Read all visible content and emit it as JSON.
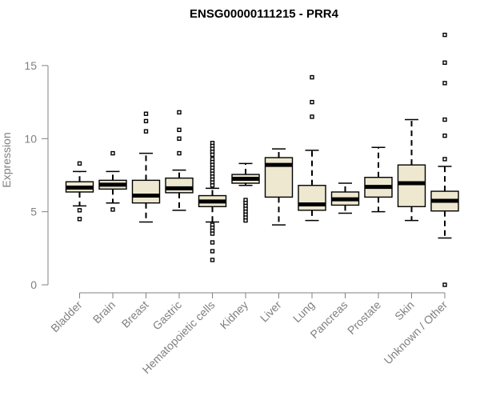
{
  "chart_data": {
    "type": "boxplot",
    "title": "ENSG00000111215 - PRR4",
    "ylabel": "Expression",
    "xlabel": "",
    "ylim": [
      0,
      17.5
    ],
    "yticks": [
      0,
      5,
      10,
      15
    ],
    "box_fill": "#EEE8D0",
    "categories": [
      "Bladder",
      "Brain",
      "Breast",
      "Gastric",
      "Hematopoietic cells",
      "Kidney",
      "Liver",
      "Lung",
      "Pancreas",
      "Prostate",
      "Skin",
      "Unknown / Other"
    ],
    "series": [
      {
        "whisker_low": 5.4,
        "q1": 6.35,
        "median": 6.65,
        "q3": 7.05,
        "whisker_high": 7.75,
        "outliers": [
          8.3,
          5.1,
          4.5
        ]
      },
      {
        "whisker_low": 5.6,
        "q1": 6.55,
        "median": 6.85,
        "q3": 7.15,
        "whisker_high": 7.75,
        "outliers": [
          9.0,
          5.15
        ]
      },
      {
        "whisker_low": 4.3,
        "q1": 5.6,
        "median": 6.1,
        "q3": 7.15,
        "whisker_high": 9.0,
        "outliers": [
          11.7,
          11.2,
          10.5
        ]
      },
      {
        "whisker_low": 5.1,
        "q1": 6.3,
        "median": 6.6,
        "q3": 7.3,
        "whisker_high": 7.85,
        "outliers": [
          11.8,
          10.6,
          10.0,
          9.0
        ]
      },
      {
        "whisker_low": 4.3,
        "q1": 5.35,
        "median": 5.7,
        "q3": 6.1,
        "whisker_high": 6.6,
        "outliers": [
          9.7,
          9.5,
          9.3,
          9.1,
          8.9,
          8.6,
          8.4,
          8.2,
          8.0,
          7.8,
          7.6,
          7.4,
          7.2,
          7.0,
          6.8,
          4.1,
          3.9,
          3.7,
          3.5,
          2.9,
          2.3,
          1.7
        ]
      },
      {
        "whisker_low": 6.8,
        "q1": 6.95,
        "median": 7.25,
        "q3": 7.55,
        "whisker_high": 8.3,
        "outliers": [
          5.8,
          5.6,
          5.4,
          5.2,
          5.0,
          4.8,
          4.6,
          4.4
        ]
      },
      {
        "whisker_low": 4.1,
        "q1": 6.0,
        "median": 8.2,
        "q3": 8.7,
        "whisker_high": 9.3,
        "outliers": []
      },
      {
        "whisker_low": 4.4,
        "q1": 5.1,
        "median": 5.5,
        "q3": 6.8,
        "whisker_high": 9.2,
        "outliers": [
          14.2,
          12.5,
          11.5
        ]
      },
      {
        "whisker_low": 4.9,
        "q1": 5.45,
        "median": 5.85,
        "q3": 6.35,
        "whisker_high": 6.95,
        "outliers": []
      },
      {
        "whisker_low": 5.0,
        "q1": 6.0,
        "median": 6.7,
        "q3": 7.35,
        "whisker_high": 9.4,
        "outliers": []
      },
      {
        "whisker_low": 4.4,
        "q1": 5.35,
        "median": 6.95,
        "q3": 8.2,
        "whisker_high": 11.3,
        "outliers": []
      },
      {
        "whisker_low": 3.2,
        "q1": 5.05,
        "median": 5.75,
        "q3": 6.4,
        "whisker_high": 8.1,
        "outliers": [
          17.1,
          15.2,
          13.8,
          11.3,
          10.2,
          8.6,
          0.0
        ]
      }
    ]
  }
}
